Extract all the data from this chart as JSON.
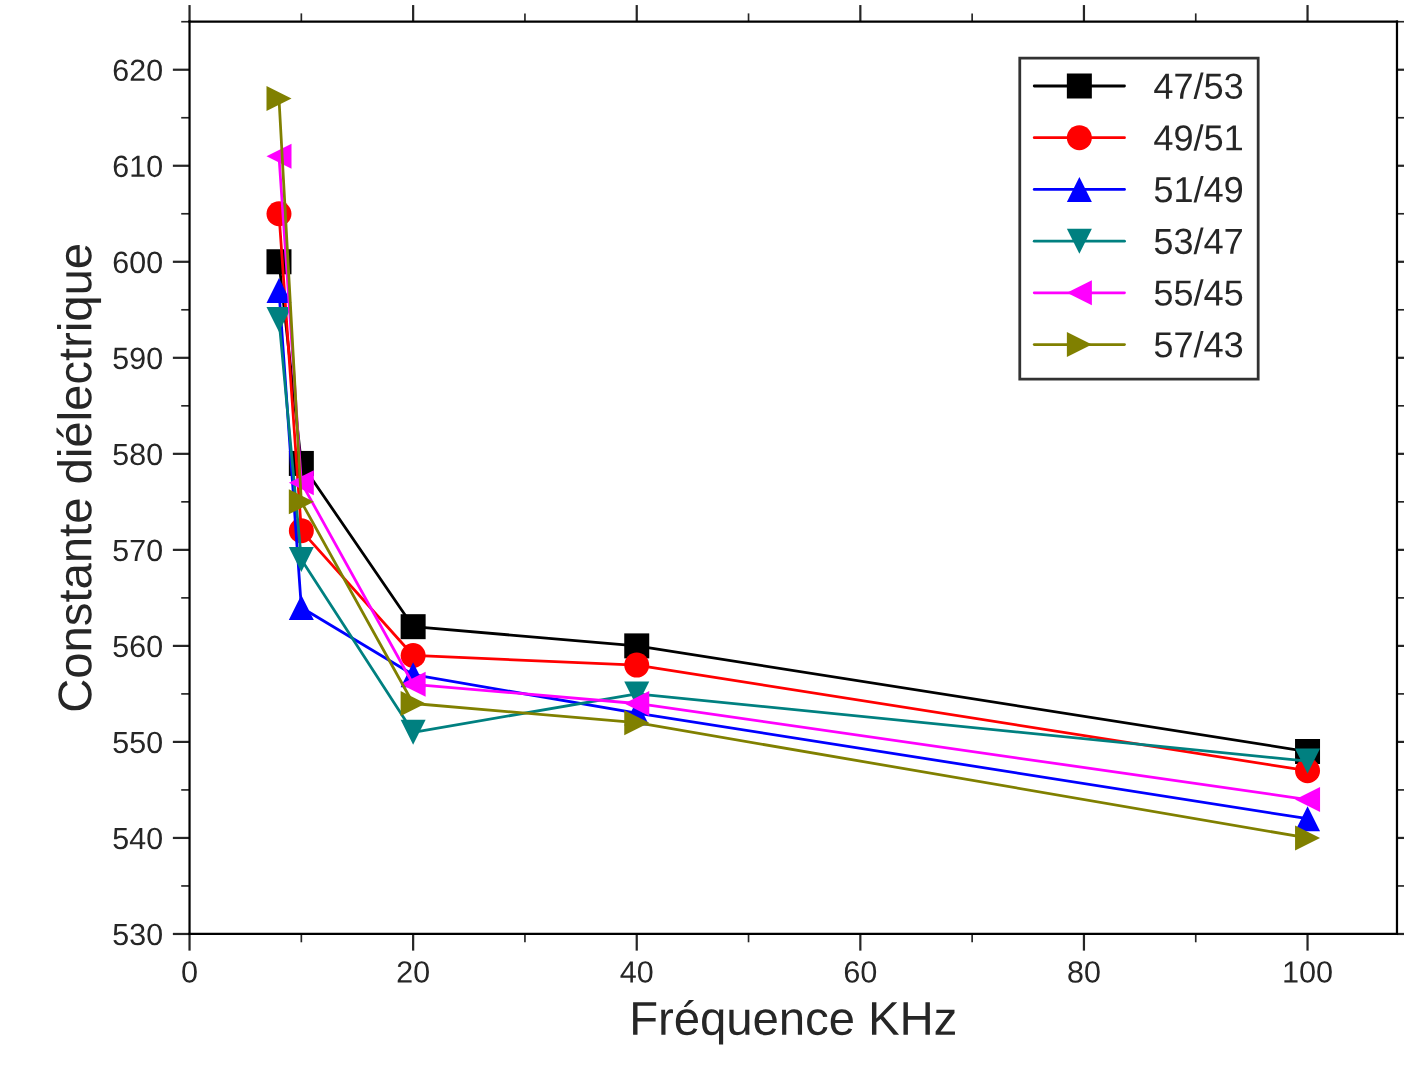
{
  "chart_data": {
    "type": "line",
    "xlabel": "Fréquence KHz",
    "ylabel": "Constante diélectrique",
    "x": [
      8,
      10,
      20,
      40,
      100
    ],
    "series": [
      {
        "name": "47/53",
        "color": "#000000",
        "marker": "square",
        "values": [
          600,
          579,
          562,
          560,
          549
        ]
      },
      {
        "name": "49/51",
        "color": "#ff0000",
        "marker": "circle",
        "values": [
          605,
          572,
          559,
          558,
          547
        ]
      },
      {
        "name": "51/49",
        "color": "#0000ff",
        "marker": "triangle",
        "values": [
          597,
          564,
          557,
          553,
          542
        ]
      },
      {
        "name": "53/47",
        "color": "#008080",
        "marker": "triangle_down",
        "values": [
          594,
          569,
          551,
          555,
          548
        ]
      },
      {
        "name": "55/45",
        "color": "#ff00ff",
        "marker": "triangle_left",
        "values": [
          611,
          577,
          556,
          554,
          544
        ]
      },
      {
        "name": "57/43",
        "color": "#808000",
        "marker": "triangle_right",
        "values": [
          617,
          575,
          554,
          552,
          540
        ]
      }
    ],
    "xlim": [
      0,
      108
    ],
    "ylim": [
      530,
      625
    ],
    "xticks": [
      0,
      20,
      40,
      60,
      80,
      100
    ],
    "yticks": [
      530,
      540,
      550,
      560,
      570,
      580,
      590,
      600,
      610,
      620
    ],
    "legend": "top right",
    "grid": false,
    "line_style": "solid"
  }
}
